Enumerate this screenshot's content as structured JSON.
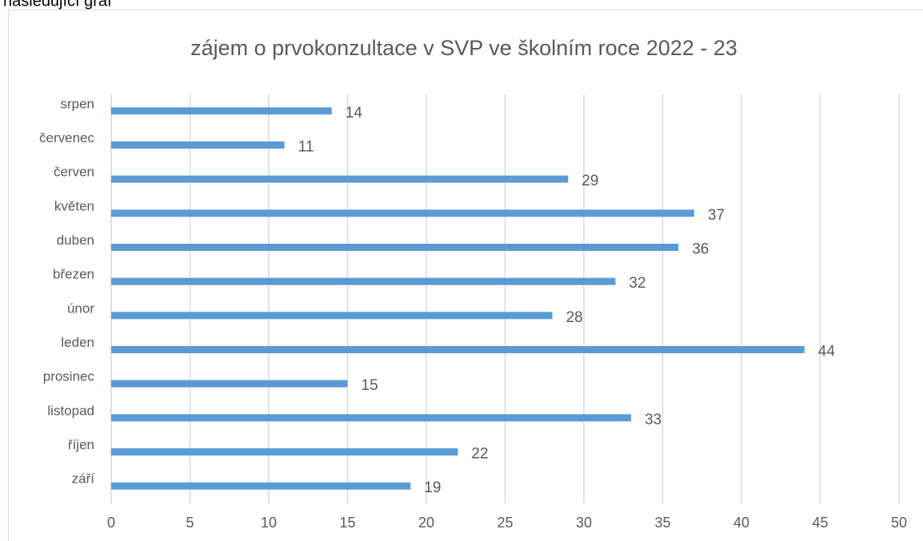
{
  "caption": "následující graf",
  "chart_data": {
    "type": "barh",
    "title": "zájem o prvokonzultace v SVP ve školním roce 2022 - 23",
    "categories": [
      "září",
      "říjen",
      "listopad",
      "prosinec",
      "leden",
      "únor",
      "březen",
      "duben",
      "květen",
      "červen",
      "červenec",
      "srpen"
    ],
    "values": [
      19,
      22,
      33,
      15,
      44,
      28,
      32,
      36,
      37,
      29,
      11,
      14
    ],
    "color": "#5b9bd5",
    "xlim": [
      0,
      50
    ],
    "xticks": [
      0,
      5,
      10,
      15,
      20,
      25,
      30,
      35,
      40,
      45,
      50
    ],
    "grid": true
  }
}
